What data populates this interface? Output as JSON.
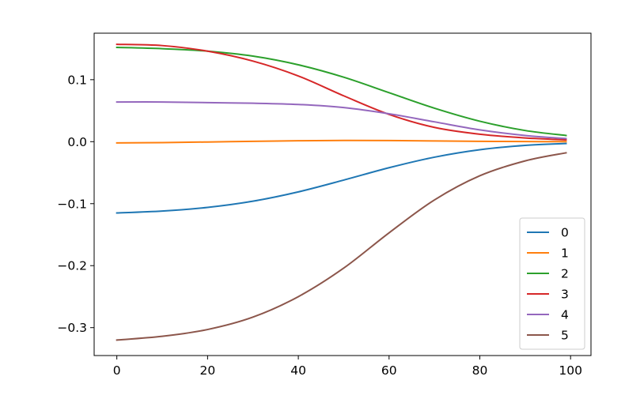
{
  "chart_data": {
    "type": "line",
    "title": "",
    "xlabel": "",
    "ylabel": "",
    "xlim": [
      -5,
      104.5
    ],
    "ylim": [
      -0.345,
      0.175
    ],
    "xticks": [
      0,
      20,
      40,
      60,
      80,
      100
    ],
    "xtick_labels": [
      "0",
      "20",
      "40",
      "60",
      "80",
      "100"
    ],
    "yticks": [
      -0.3,
      -0.2,
      -0.1,
      0.0,
      0.1
    ],
    "ytick_labels": [
      "−0.3",
      "−0.2",
      "−0.1",
      "0.0",
      "0.1"
    ],
    "grid": false,
    "legend_position": "lower-right",
    "x": [
      0,
      10,
      20,
      30,
      40,
      50,
      60,
      70,
      80,
      90,
      99
    ],
    "series": [
      {
        "name": "0",
        "color": "#1f77b4",
        "values": [
          -0.115,
          -0.112,
          -0.106,
          -0.096,
          -0.081,
          -0.062,
          -0.042,
          -0.025,
          -0.013,
          -0.006,
          -0.003
        ]
      },
      {
        "name": "1",
        "color": "#ff7f0e",
        "values": [
          -0.002,
          -0.0015,
          -0.0005,
          0.0005,
          0.0015,
          0.002,
          0.0018,
          0.0012,
          0.0006,
          0.0002,
          0.0
        ]
      },
      {
        "name": "2",
        "color": "#2ca02c",
        "values": [
          0.152,
          0.15,
          0.146,
          0.138,
          0.124,
          0.104,
          0.079,
          0.054,
          0.033,
          0.018,
          0.01
        ]
      },
      {
        "name": "3",
        "color": "#d62728",
        "values": [
          0.157,
          0.155,
          0.146,
          0.13,
          0.106,
          0.074,
          0.044,
          0.023,
          0.012,
          0.006,
          0.003
        ]
      },
      {
        "name": "4",
        "color": "#9467bd",
        "values": [
          0.064,
          0.064,
          0.063,
          0.062,
          0.06,
          0.055,
          0.045,
          0.032,
          0.019,
          0.01,
          0.005
        ]
      },
      {
        "name": "5",
        "color": "#8c564b",
        "values": [
          -0.32,
          -0.314,
          -0.303,
          -0.283,
          -0.25,
          -0.204,
          -0.147,
          -0.094,
          -0.055,
          -0.031,
          -0.018
        ]
      }
    ]
  }
}
